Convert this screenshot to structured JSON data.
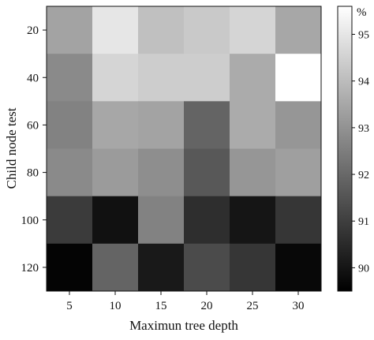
{
  "chart_data": {
    "type": "heatmap",
    "title": "",
    "xlabel": "Maximun tree depth",
    "ylabel": "Child node test",
    "x": [
      5,
      10,
      15,
      20,
      25,
      30
    ],
    "y": [
      20,
      40,
      60,
      80,
      100,
      120
    ],
    "values": [
      [
        93.4,
        95.0,
        94.1,
        94.3,
        94.6,
        93.5
      ],
      [
        92.8,
        94.6,
        94.4,
        94.4,
        93.6,
        95.6
      ],
      [
        92.6,
        93.5,
        93.4,
        91.9,
        93.6,
        93.1
      ],
      [
        92.8,
        93.2,
        92.9,
        91.6,
        93.1,
        93.3
      ],
      [
        90.9,
        89.9,
        92.6,
        90.6,
        90.0,
        90.8
      ],
      [
        89.6,
        91.9,
        90.1,
        91.3,
        90.8,
        89.7
      ]
    ],
    "colorbar": {
      "label": "%",
      "ticks": [
        90,
        91,
        92,
        93,
        94,
        95
      ],
      "range": [
        89.5,
        95.6
      ],
      "colormap": "gray"
    }
  }
}
